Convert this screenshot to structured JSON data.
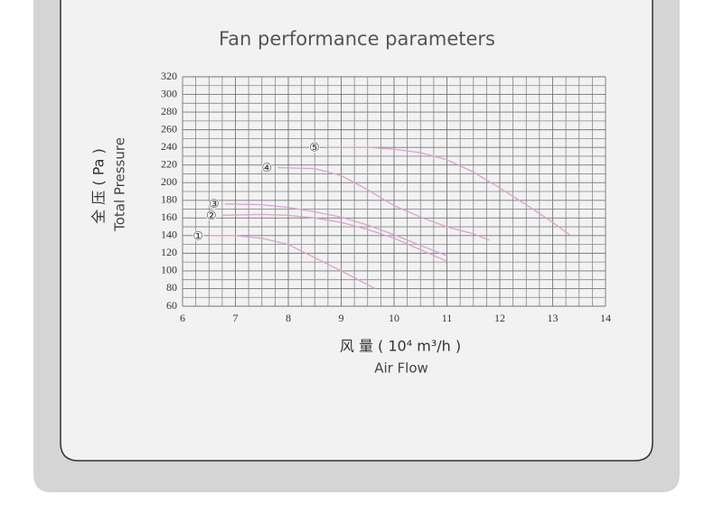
{
  "chart_data": {
    "type": "line",
    "title": "Fan performance parameters",
    "ylabel": "全 压 ( Pa )",
    "ylabel_en": "Total  Pressure",
    "xlabel": "风  量 ( 10⁴ m³/h )",
    "xlabel_en": "Air Flow",
    "xlim": [
      6,
      14
    ],
    "xticks": [
      6,
      7,
      8,
      9,
      10,
      11,
      12,
      13,
      14
    ],
    "ylim": [
      60,
      320
    ],
    "yticks": [
      60,
      80,
      100,
      120,
      140,
      160,
      180,
      200,
      220,
      240,
      260,
      280,
      300,
      320
    ],
    "grid": true,
    "grid_subdivisions": {
      "x": 4,
      "y": 2
    },
    "series": [
      {
        "name": "①",
        "color": "#d9a3cc",
        "x": [
          6.5,
          7,
          7.5,
          8,
          8.5,
          9,
          9.64
        ],
        "values": [
          140,
          140,
          137,
          130,
          115,
          100,
          80
        ]
      },
      {
        "name": "②",
        "color": "#d9a3cc",
        "x": [
          6.75,
          7.5,
          8,
          8.5,
          9,
          9.5,
          10,
          10.5,
          11
        ],
        "values": [
          163,
          164,
          163,
          160,
          155,
          147,
          137,
          124,
          111
        ]
      },
      {
        "name": "③",
        "color": "#d9a3cc",
        "x": [
          6.8,
          7.5,
          8,
          8.5,
          9,
          9.5,
          10,
          10.5,
          11
        ],
        "values": [
          176,
          175,
          172,
          167,
          161,
          152,
          141,
          129,
          117
        ]
      },
      {
        "name": "④",
        "color": "#d9a3cc",
        "x": [
          7.8,
          8.5,
          9,
          9.5,
          10,
          10.5,
          11,
          11.5,
          11.8
        ],
        "values": [
          217,
          216,
          208,
          192,
          174,
          161,
          150,
          142,
          135
        ]
      },
      {
        "name": "⑤",
        "color": "#d9a3cc",
        "x": [
          8.7,
          9.5,
          10,
          10.5,
          11,
          11.5,
          12,
          12.5,
          13,
          13.32
        ],
        "values": [
          240,
          240,
          238,
          234,
          226,
          212,
          194,
          175,
          155,
          141
        ]
      }
    ]
  }
}
